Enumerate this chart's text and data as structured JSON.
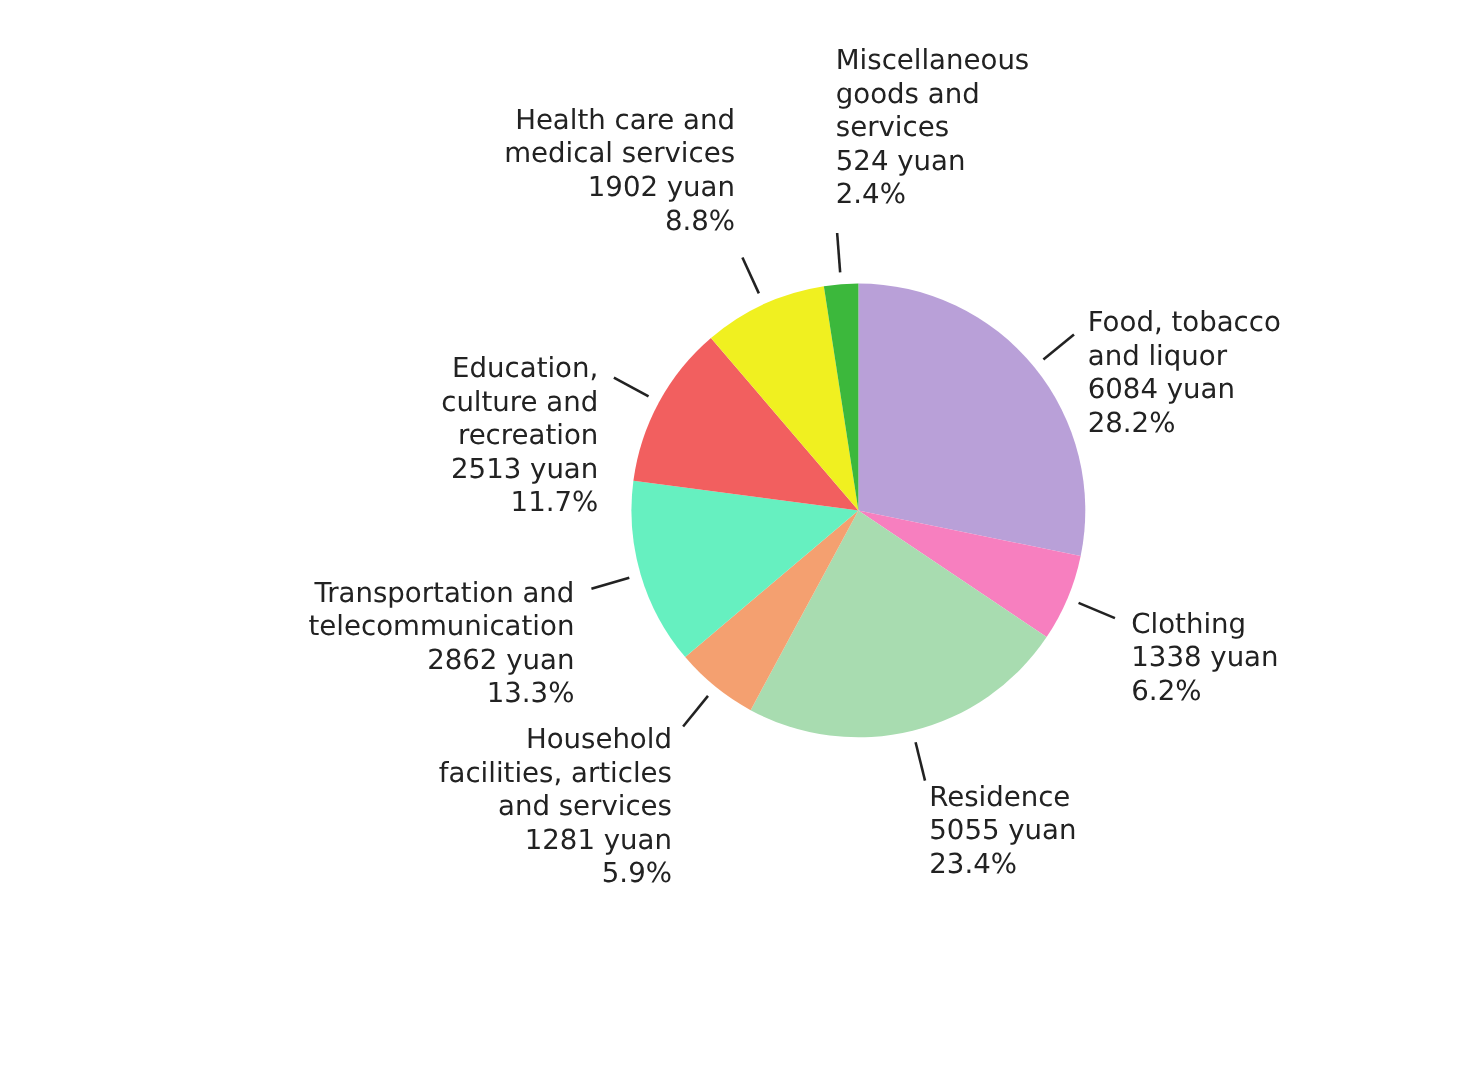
{
  "chart_data": {
    "type": "pie",
    "categories": [
      "Food, tobacco\nand liquor",
      "Clothing",
      "Residence",
      "Household\nfacilities, articles\nand services",
      "Transportation and\ntelecommunication",
      "Education,\nculture and\nrecreation",
      "Health care and\nmedical services",
      "Miscellaneous\ngoods and\nservices"
    ],
    "values": [
      6084,
      1338,
      5055,
      1281,
      2862,
      2513,
      1902,
      524
    ],
    "value_labels": [
      "6084 yuan\n28.2%",
      "1338 yuan\n6.2%",
      "5055 yuan\n23.4%",
      "1281 yuan\n5.9%",
      "2862 yuan\n13.3%",
      "2513 yuan\n11.7%",
      "1902 yuan\n8.8%",
      "524 yuan\n2.4%"
    ],
    "colors": [
      "#b9a0d8",
      "#f77fbf",
      "#a8dcb0",
      "#f4a070",
      "#66f0c0",
      "#f25f5f",
      "#f0f020",
      "#3cb83c"
    ]
  }
}
